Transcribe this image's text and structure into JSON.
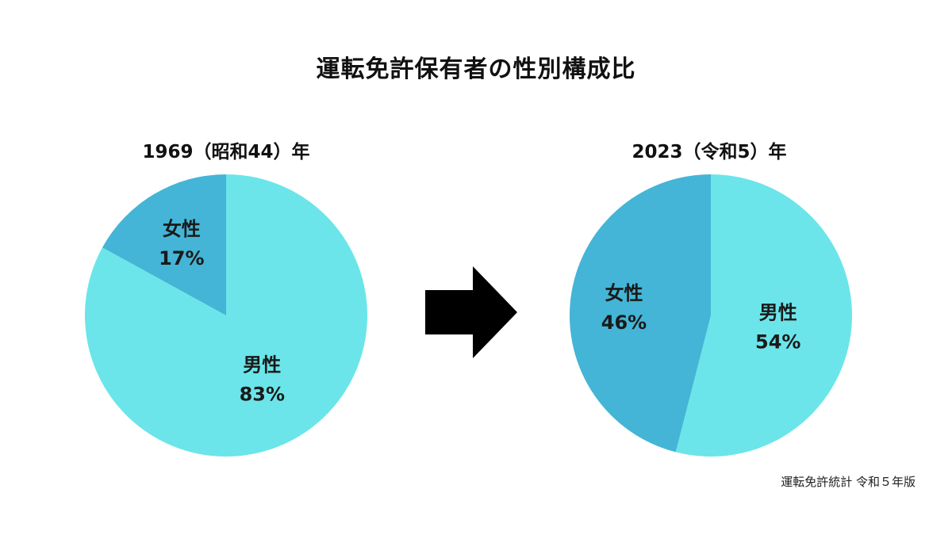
{
  "title": "運転免許保有者の性別構成比",
  "source": "運転免許統計 令和５年版",
  "colors": {
    "male": "#6be5e9",
    "female": "#44b5d6",
    "arrow": "#000000"
  },
  "chart_data": [
    {
      "type": "pie",
      "title": "1969（昭和44）年",
      "slices": [
        {
          "label": "女性",
          "value": 17,
          "value_label": "17%"
        },
        {
          "label": "男性",
          "value": 83,
          "value_label": "83%"
        }
      ]
    },
    {
      "type": "pie",
      "title": "2023（令和5）年",
      "slices": [
        {
          "label": "女性",
          "value": 46,
          "value_label": "46%"
        },
        {
          "label": "男性",
          "value": 54,
          "value_label": "54%"
        }
      ]
    }
  ]
}
